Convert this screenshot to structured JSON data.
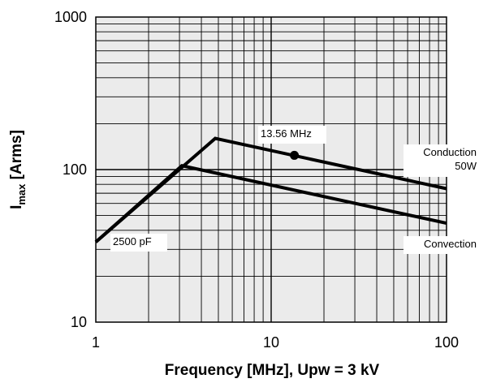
{
  "chart_data": {
    "type": "line",
    "xscale": "log",
    "yscale": "log",
    "xlim": [
      1,
      100
    ],
    "ylim": [
      10,
      1000
    ],
    "grid": true,
    "x_ticks": [
      "1",
      "10",
      "100"
    ],
    "y_ticks": [
      "10",
      "100",
      "1000"
    ],
    "xlabel": "Frequency [MHz], Upw = 3 kV",
    "ylabel_main": "I",
    "ylabel_sub": "max",
    "ylabel_rest": " [Arms]",
    "series": [
      {
        "name": "Conduction 50W",
        "x": [
          1,
          4.8,
          100
        ],
        "y": [
          33.5,
          160,
          75
        ]
      },
      {
        "name": "Convection",
        "x": [
          1,
          3.1,
          100
        ],
        "y": [
          33.5,
          106,
          44.5
        ]
      }
    ],
    "marker": {
      "label": "13.56 MHz",
      "x": 13.56,
      "y": 124
    },
    "annotations": {
      "conduction_line1": "Conduction",
      "conduction_line2": "50W",
      "convection": "Convection",
      "capacitance": "2500 pF",
      "frequency": "13.56 MHz"
    }
  }
}
